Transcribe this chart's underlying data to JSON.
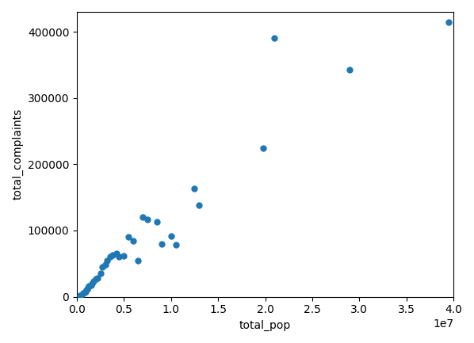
{
  "x": [
    300000,
    500000,
    700000,
    800000,
    900000,
    1000000,
    1100000,
    1200000,
    1300000,
    1500000,
    1600000,
    1800000,
    2000000,
    2200000,
    2500000,
    2700000,
    3000000,
    3200000,
    3500000,
    3800000,
    4200000,
    4500000,
    5000000,
    5500000,
    6000000,
    6500000,
    7000000,
    7500000,
    8500000,
    9000000,
    10000000,
    10500000,
    12500000,
    13000000,
    19800000,
    21000000,
    29000000,
    39500000
  ],
  "y": [
    1500,
    3000,
    5000,
    7000,
    8000,
    10000,
    12000,
    14000,
    16000,
    18000,
    20000,
    23000,
    27000,
    28000,
    35000,
    45000,
    48000,
    55000,
    60000,
    63000,
    65000,
    60000,
    62000,
    90000,
    85000,
    55000,
    120000,
    117000,
    113000,
    80000,
    91000,
    78000,
    163000,
    138000,
    224000,
    390000,
    343000,
    415000
  ],
  "color": "#1f77b4",
  "xlabel": "total_pop",
  "ylabel": "total_complaints",
  "xlim_min": 0,
  "xlim_max": 40000000,
  "ylim_min": 0,
  "ylim_max": 430000,
  "yticks": [
    0,
    100000,
    200000,
    300000,
    400000
  ],
  "marker_size": 25,
  "figwidth": 5.98,
  "figheight": 4.33,
  "dpi": 100
}
